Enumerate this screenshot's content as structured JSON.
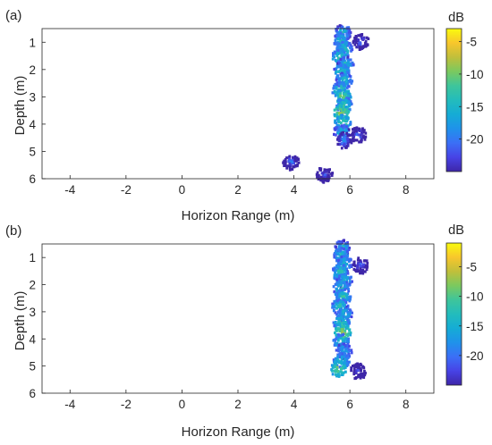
{
  "chart_data": [
    {
      "type": "heatmap",
      "panel_label": "(a)",
      "xlabel": "Horizon Range (m)",
      "ylabel": "Depth (m)",
      "xlim": [
        -5,
        9
      ],
      "ylim": [
        0.5,
        6
      ],
      "y_reversed": true,
      "xticks": [
        -4,
        -2,
        0,
        2,
        4,
        6,
        8
      ],
      "yticks": [
        1,
        2,
        3,
        4,
        5,
        6
      ],
      "colorbar": {
        "label": "dB",
        "range": [
          -25,
          -3
        ],
        "ticks": [
          -5,
          -10,
          -15,
          -20
        ],
        "colormap": "parula"
      },
      "blobs": [
        {
          "x": 5.75,
          "y": 0.65,
          "value": -14
        },
        {
          "x": 5.7,
          "y": 0.95,
          "value": -13
        },
        {
          "x": 5.8,
          "y": 1.25,
          "value": -12
        },
        {
          "x": 5.65,
          "y": 1.55,
          "value": -11
        },
        {
          "x": 5.85,
          "y": 1.8,
          "value": -14
        },
        {
          "x": 5.7,
          "y": 2.1,
          "value": -12
        },
        {
          "x": 5.8,
          "y": 2.4,
          "value": -13
        },
        {
          "x": 5.65,
          "y": 2.75,
          "value": -11
        },
        {
          "x": 5.75,
          "y": 3.0,
          "value": -9
        },
        {
          "x": 5.8,
          "y": 3.3,
          "value": -12
        },
        {
          "x": 5.7,
          "y": 3.6,
          "value": -7
        },
        {
          "x": 5.75,
          "y": 3.95,
          "value": -10
        },
        {
          "x": 5.7,
          "y": 4.3,
          "value": -14
        },
        {
          "x": 5.8,
          "y": 4.6,
          "value": -18
        },
        {
          "x": 6.3,
          "y": 4.4,
          "value": -20
        },
        {
          "x": 6.4,
          "y": 1.0,
          "value": -20
        },
        {
          "x": 3.9,
          "y": 5.4,
          "value": -20
        },
        {
          "x": 5.1,
          "y": 5.85,
          "value": -22
        }
      ]
    },
    {
      "type": "heatmap",
      "panel_label": "(b)",
      "xlabel": "Horizon Range (m)",
      "ylabel": "Depth (m)",
      "xlim": [
        -5,
        9
      ],
      "ylim": [
        0.5,
        6
      ],
      "y_reversed": true,
      "xticks": [
        -4,
        -2,
        0,
        2,
        4,
        6,
        8
      ],
      "yticks": [
        1,
        2,
        3,
        4,
        5,
        6
      ],
      "colorbar": {
        "label": "dB",
        "range": [
          -25,
          -1
        ],
        "ticks": [
          -5,
          -10,
          -15,
          -20
        ],
        "colormap": "parula"
      },
      "blobs": [
        {
          "x": 5.75,
          "y": 0.65,
          "value": -14
        },
        {
          "x": 5.7,
          "y": 0.95,
          "value": -12
        },
        {
          "x": 5.8,
          "y": 1.25,
          "value": -13
        },
        {
          "x": 5.65,
          "y": 1.55,
          "value": -11
        },
        {
          "x": 5.8,
          "y": 1.85,
          "value": -13
        },
        {
          "x": 5.7,
          "y": 2.15,
          "value": -12
        },
        {
          "x": 5.75,
          "y": 2.45,
          "value": -11
        },
        {
          "x": 5.65,
          "y": 2.8,
          "value": -12
        },
        {
          "x": 5.8,
          "y": 3.1,
          "value": -13
        },
        {
          "x": 5.7,
          "y": 3.4,
          "value": -11
        },
        {
          "x": 5.75,
          "y": 3.75,
          "value": -6
        },
        {
          "x": 5.7,
          "y": 4.1,
          "value": -12
        },
        {
          "x": 5.8,
          "y": 4.45,
          "value": -14
        },
        {
          "x": 5.7,
          "y": 4.8,
          "value": -12
        },
        {
          "x": 5.6,
          "y": 5.1,
          "value": -8
        },
        {
          "x": 6.4,
          "y": 1.3,
          "value": -20
        },
        {
          "x": 6.3,
          "y": 5.2,
          "value": -22
        }
      ]
    }
  ]
}
